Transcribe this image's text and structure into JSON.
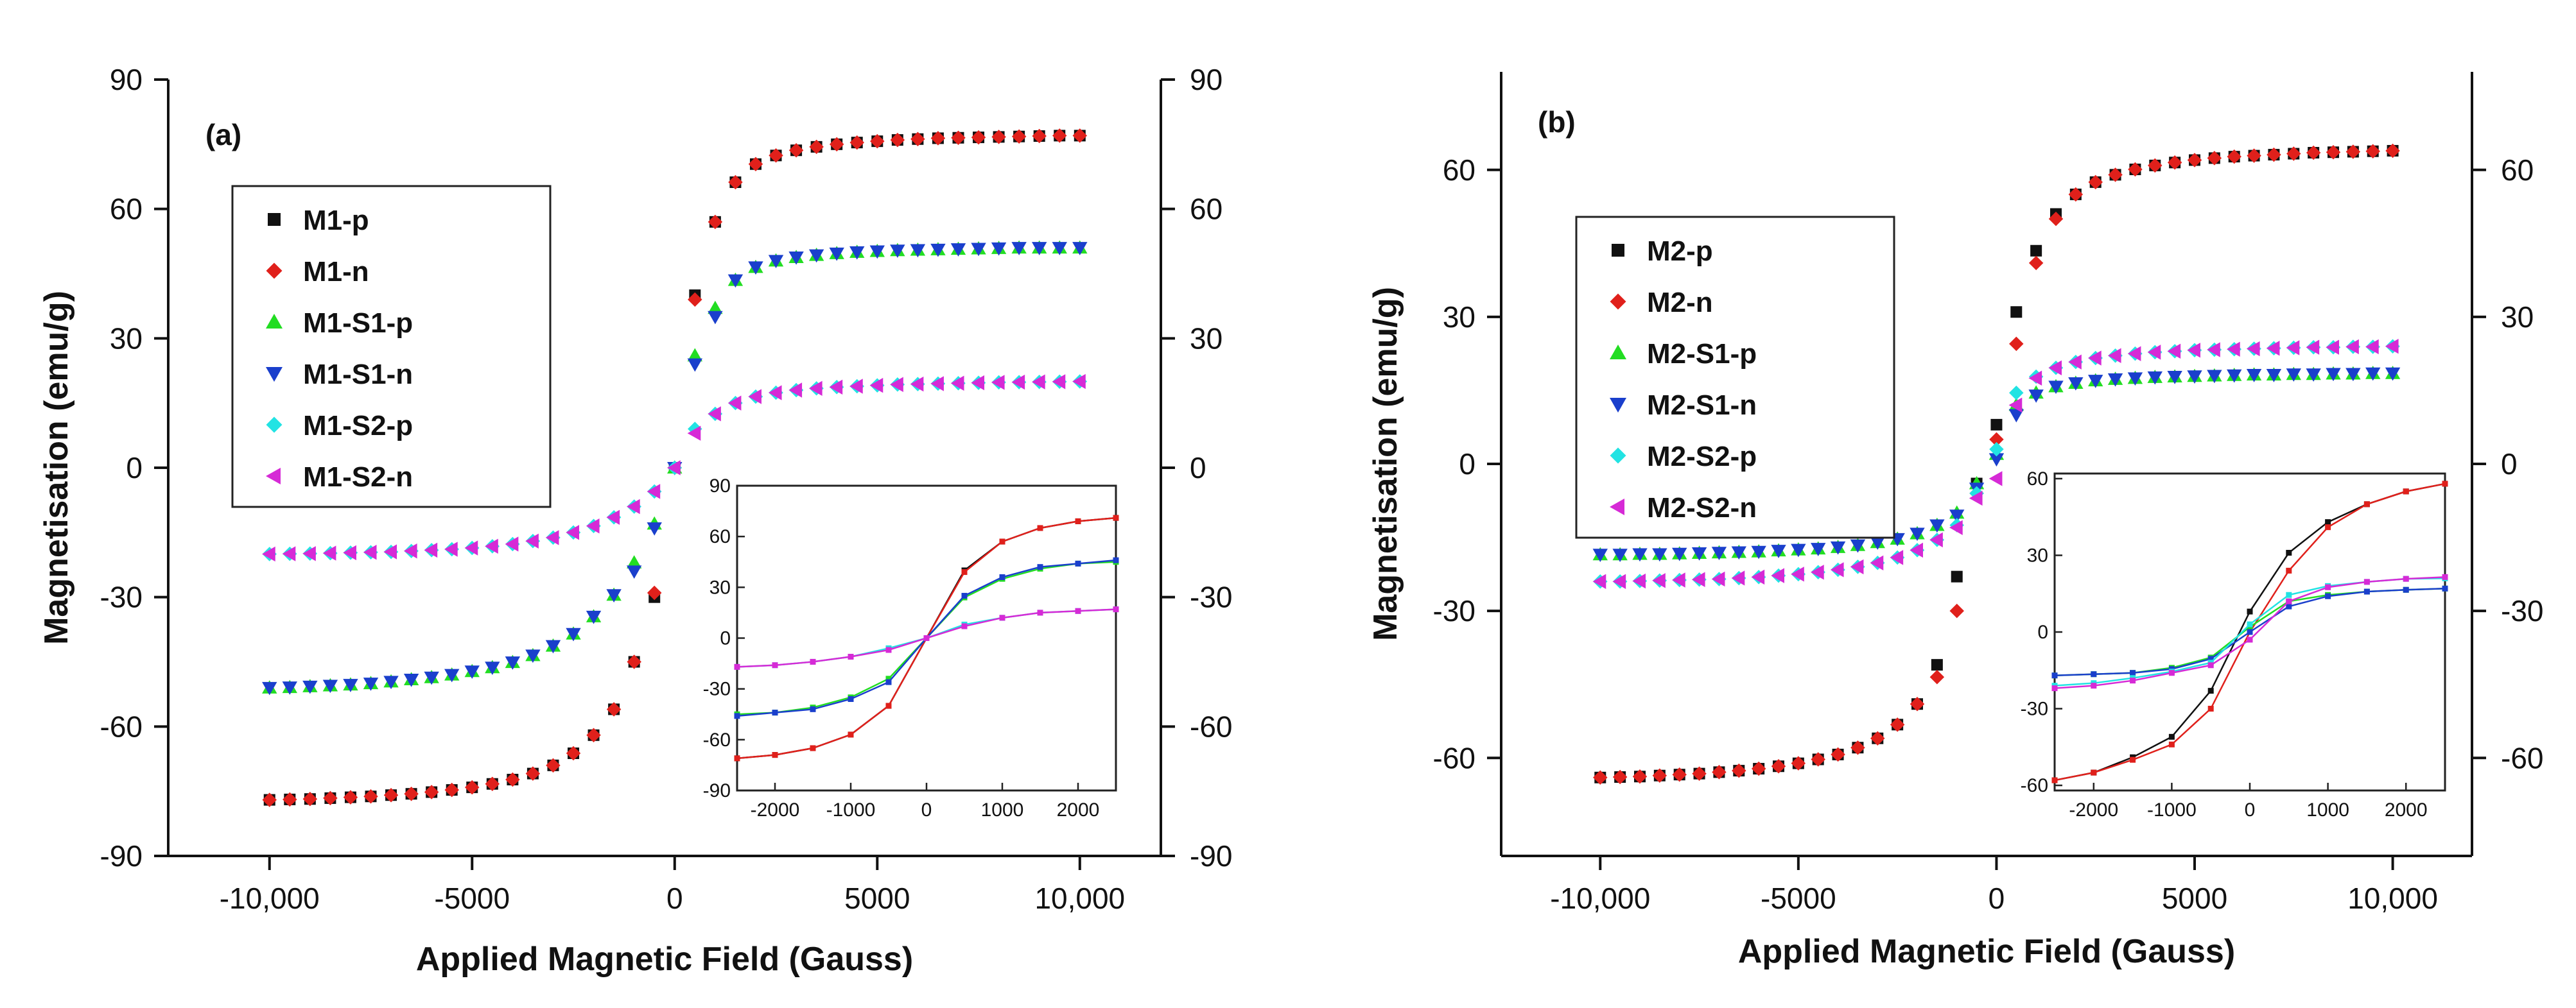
{
  "chart_data": [
    {
      "type": "scatter",
      "panel_label": "(a)",
      "xlabel": "Applied Magnetic Field (Gauss)",
      "ylabel": "Magnetisation (emu/g)",
      "xlim": [
        -12500,
        12000
      ],
      "ylim": [
        -90,
        90
      ],
      "xticks": [
        -10000,
        -5000,
        0,
        5000,
        10000
      ],
      "xtick_labels": [
        "-10,000",
        "-5000",
        "0",
        "5000",
        "10,000"
      ],
      "yticks": [
        -90,
        -60,
        -30,
        0,
        30,
        60,
        90
      ],
      "ytick_labels": [
        "-90",
        "-60",
        "-30",
        "0",
        "30",
        "60",
        "90"
      ],
      "right_ytick_labels": [
        "-90",
        "-60",
        "-30",
        "0",
        "30",
        "60",
        "90"
      ],
      "legend_position": "upper-left",
      "x": [
        -10000,
        -9500,
        -9000,
        -8500,
        -8000,
        -7500,
        -7000,
        -6500,
        -6000,
        -5500,
        -5000,
        -4500,
        -4000,
        -3500,
        -3000,
        -2500,
        -2000,
        -1500,
        -1000,
        -500,
        0,
        500,
        1000,
        1500,
        2000,
        2500,
        3000,
        3500,
        4000,
        4500,
        5000,
        5500,
        6000,
        6500,
        7000,
        7500,
        8000,
        8500,
        9000,
        9500,
        10000
      ],
      "series": [
        {
          "name": "M1-p",
          "color": "#111111",
          "marker": "square",
          "values": [
            -77,
            -76.9,
            -76.8,
            -76.6,
            -76.4,
            -76.2,
            -75.9,
            -75.6,
            -75.2,
            -74.7,
            -74.1,
            -73.3,
            -72.3,
            -70.9,
            -69,
            -66.2,
            -62,
            -56,
            -45,
            -30,
            0,
            40,
            57,
            66.2,
            70.4,
            72.4,
            73.6,
            74.4,
            75,
            75.4,
            75.7,
            76,
            76.2,
            76.4,
            76.5,
            76.6,
            76.7,
            76.8,
            76.9,
            77,
            77
          ]
        },
        {
          "name": "M1-n",
          "color": "#e0201b",
          "marker": "diamond",
          "values": [
            -77,
            -76.9,
            -76.8,
            -76.6,
            -76.4,
            -76.2,
            -75.9,
            -75.6,
            -75.2,
            -74.7,
            -74.1,
            -73.3,
            -72.3,
            -70.9,
            -69,
            -66.2,
            -62,
            -56,
            -45,
            -29,
            0,
            39,
            57,
            66.2,
            70.4,
            72.4,
            73.6,
            74.4,
            75,
            75.4,
            75.7,
            76,
            76.2,
            76.4,
            76.5,
            76.6,
            76.7,
            76.8,
            76.9,
            77,
            77
          ]
        },
        {
          "name": "M1-S1-p",
          "color": "#22dd22",
          "marker": "triangle-up",
          "values": [
            -51,
            -50.9,
            -50.7,
            -50.5,
            -50.3,
            -50,
            -49.6,
            -49.1,
            -48.6,
            -48,
            -47.2,
            -46.3,
            -45.1,
            -43.5,
            -41.3,
            -38.5,
            -34.5,
            -29.5,
            -22,
            -13,
            0,
            26,
            37,
            43.5,
            46.5,
            48,
            48.8,
            49.3,
            49.7,
            50,
            50.2,
            50.4,
            50.5,
            50.6,
            50.7,
            50.8,
            50.9,
            51,
            51,
            51,
            51
          ]
        },
        {
          "name": "M1-S1-n",
          "color": "#1a3fcc",
          "marker": "triangle-down",
          "values": [
            -51,
            -50.9,
            -50.7,
            -50.5,
            -50.3,
            -50,
            -49.6,
            -49.1,
            -48.6,
            -48,
            -47.2,
            -46.3,
            -45.1,
            -43.5,
            -41.3,
            -38.5,
            -34.5,
            -29.5,
            -24,
            -14,
            0,
            24,
            35,
            43.5,
            46.5,
            48,
            48.8,
            49.3,
            49.7,
            50,
            50.2,
            50.4,
            50.5,
            50.6,
            50.7,
            50.8,
            50.9,
            51,
            51,
            51,
            51
          ]
        },
        {
          "name": "M1-S2-p",
          "color": "#22e3e3",
          "marker": "diamond",
          "values": [
            -20,
            -19.95,
            -19.9,
            -19.8,
            -19.7,
            -19.6,
            -19.5,
            -19.3,
            -19.1,
            -18.9,
            -18.6,
            -18.2,
            -17.7,
            -17,
            -16.2,
            -15,
            -13.5,
            -11.5,
            -9,
            -5.5,
            0,
            9,
            12.5,
            15,
            16.5,
            17.4,
            18,
            18.4,
            18.7,
            18.9,
            19.1,
            19.3,
            19.4,
            19.5,
            19.6,
            19.7,
            19.8,
            19.85,
            19.9,
            19.95,
            20
          ]
        },
        {
          "name": "M1-S2-n",
          "color": "#d62ad6",
          "marker": "triangle-left",
          "values": [
            -20,
            -19.95,
            -19.9,
            -19.8,
            -19.7,
            -19.6,
            -19.5,
            -19.3,
            -19.1,
            -18.9,
            -18.6,
            -18.2,
            -17.7,
            -17,
            -16.2,
            -15,
            -13.5,
            -11.5,
            -9,
            -5.5,
            0,
            8,
            12.5,
            15,
            16.5,
            17.4,
            18,
            18.4,
            18.7,
            18.9,
            19.1,
            19.3,
            19.4,
            19.5,
            19.6,
            19.7,
            19.8,
            19.85,
            19.9,
            19.95,
            20
          ]
        }
      ],
      "inset": {
        "xlim": [
          -2500,
          2500
        ],
        "ylim": [
          -90,
          90
        ],
        "xticks": [
          -2000,
          -1000,
          0,
          1000,
          2000
        ],
        "xtick_labels": [
          "-2000",
          "-1000",
          "0",
          "1000",
          "2000"
        ],
        "yticks": [
          -90,
          -60,
          -30,
          0,
          30,
          60,
          90
        ],
        "ytick_labels": [
          "-90",
          "-60",
          "-30",
          "0",
          "30",
          "60",
          "90"
        ],
        "x": [
          -2500,
          -2000,
          -1500,
          -1000,
          -500,
          0,
          500,
          1000,
          1500,
          2000,
          2500
        ],
        "series": [
          {
            "name": "M1-p",
            "color": "#111111",
            "values": [
              -71,
              -69,
              -65,
              -57,
              -40,
              0,
              40,
              57,
              65,
              69,
              71
            ]
          },
          {
            "name": "M1-n",
            "color": "#e0201b",
            "values": [
              -71,
              -69,
              -65,
              -57,
              -40,
              0,
              39,
              57,
              65,
              69,
              71
            ]
          },
          {
            "name": "M1-S1-p",
            "color": "#22dd22",
            "values": [
              -45,
              -44,
              -41,
              -35,
              -24,
              0,
              24,
              35,
              41,
              44,
              45
            ]
          },
          {
            "name": "M1-S1-n",
            "color": "#1a3fcc",
            "values": [
              -46,
              -44,
              -42,
              -36,
              -26,
              0,
              25,
              36,
              42,
              44,
              46
            ]
          },
          {
            "name": "M1-S2-p",
            "color": "#22e3e3",
            "values": [
              -17,
              -16,
              -14,
              -11,
              -6,
              0,
              8,
              12,
              15,
              16,
              17
            ]
          },
          {
            "name": "M1-S2-n",
            "color": "#d62ad6",
            "values": [
              -17,
              -16,
              -14,
              -11,
              -7,
              0,
              7,
              12,
              15,
              16,
              17
            ]
          }
        ]
      }
    },
    {
      "type": "scatter",
      "panel_label": "(b)",
      "xlabel": "Applied Magnetic Field (Gauss)",
      "ylabel": "Magnetisation (emu/g)",
      "xlim": [
        -12500,
        12000
      ],
      "ylim": [
        -80,
        80
      ],
      "xticks": [
        -10000,
        -5000,
        0,
        5000,
        10000
      ],
      "xtick_labels": [
        "-10,000",
        "-5000",
        "0",
        "5000",
        "10,000"
      ],
      "yticks": [
        -60,
        -30,
        0,
        30,
        60
      ],
      "ytick_labels": [
        "-60",
        "-30",
        "0",
        "30",
        "60"
      ],
      "right_ytick_labels": [
        "-60",
        "-30",
        "0",
        "30",
        "60"
      ],
      "legend_position": "upper-left",
      "x": [
        -10000,
        -9500,
        -9000,
        -8500,
        -8000,
        -7500,
        -7000,
        -6500,
        -6000,
        -5500,
        -5000,
        -4500,
        -4000,
        -3500,
        -3000,
        -2500,
        -2000,
        -1500,
        -1000,
        -500,
        0,
        500,
        1000,
        1500,
        2000,
        2500,
        3000,
        3500,
        4000,
        4500,
        5000,
        5500,
        6000,
        6500,
        7000,
        7500,
        8000,
        8500,
        9000,
        9500,
        10000
      ],
      "series": [
        {
          "name": "M2-p",
          "color": "#111111",
          "marker": "square",
          "values": [
            -64,
            -63.9,
            -63.8,
            -63.6,
            -63.4,
            -63.2,
            -62.9,
            -62.6,
            -62.2,
            -61.7,
            -61.1,
            -60.3,
            -59.3,
            -57.9,
            -56,
            -53.2,
            -49,
            -41,
            -23,
            -4,
            8,
            31,
            43.5,
            51,
            55,
            57.5,
            59,
            60.1,
            60.9,
            61.5,
            62,
            62.4,
            62.7,
            62.9,
            63.1,
            63.3,
            63.5,
            63.6,
            63.7,
            63.8,
            63.9
          ]
        },
        {
          "name": "M2-n",
          "color": "#e0201b",
          "marker": "diamond",
          "values": [
            -64,
            -63.9,
            -63.8,
            -63.6,
            -63.4,
            -63.2,
            -62.9,
            -62.6,
            -62.2,
            -61.7,
            -61.1,
            -60.3,
            -59.3,
            -57.9,
            -56,
            -53.2,
            -49,
            -43.5,
            -30,
            -6,
            5,
            24.5,
            41,
            50,
            55,
            57.5,
            59,
            60.1,
            60.9,
            61.5,
            62,
            62.4,
            62.7,
            62.9,
            63.1,
            63.3,
            63.5,
            63.6,
            63.7,
            63.8,
            63.9
          ]
        },
        {
          "name": "M2-S1-p",
          "color": "#22dd22",
          "marker": "triangle-up",
          "values": [
            -18.5,
            -18.5,
            -18.4,
            -18.4,
            -18.3,
            -18.2,
            -18.1,
            -18,
            -17.9,
            -17.7,
            -17.5,
            -17.3,
            -17,
            -16.6,
            -16,
            -15.3,
            -14.2,
            -12.5,
            -10,
            -4,
            2,
            12,
            14.5,
            15.8,
            16.5,
            17,
            17.3,
            17.5,
            17.7,
            17.8,
            17.9,
            18,
            18.1,
            18.2,
            18.2,
            18.3,
            18.3,
            18.4,
            18.4,
            18.5,
            18.5
          ]
        },
        {
          "name": "M2-S1-n",
          "color": "#1a3fcc",
          "marker": "triangle-down",
          "values": [
            -18.5,
            -18.5,
            -18.4,
            -18.4,
            -18.3,
            -18.2,
            -18.1,
            -18,
            -17.9,
            -17.7,
            -17.5,
            -17.3,
            -17,
            -16.6,
            -16,
            -15.3,
            -14.2,
            -12.5,
            -10.5,
            -5,
            1,
            10,
            14,
            15.8,
            16.5,
            17,
            17.3,
            17.5,
            17.7,
            17.8,
            17.9,
            18,
            18.1,
            18.2,
            18.2,
            18.3,
            18.3,
            18.4,
            18.4,
            18.5,
            18.5
          ]
        },
        {
          "name": "M2-S2-p",
          "color": "#22e3e3",
          "marker": "diamond",
          "values": [
            -24,
            -24,
            -23.9,
            -23.8,
            -23.7,
            -23.6,
            -23.5,
            -23.3,
            -23.1,
            -22.8,
            -22.5,
            -22.1,
            -21.6,
            -21,
            -20.2,
            -19.1,
            -17.6,
            -15.5,
            -12.5,
            -6,
            3,
            14.5,
            17.8,
            19.6,
            20.8,
            21.6,
            22.1,
            22.5,
            22.8,
            23,
            23.2,
            23.3,
            23.4,
            23.5,
            23.6,
            23.7,
            23.8,
            23.8,
            23.9,
            23.9,
            24
          ]
        },
        {
          "name": "M2-S2-n",
          "color": "#d62ad6",
          "marker": "triangle-left",
          "values": [
            -24,
            -24,
            -23.9,
            -23.8,
            -23.7,
            -23.6,
            -23.5,
            -23.3,
            -23.1,
            -22.8,
            -22.5,
            -22.1,
            -21.6,
            -21,
            -20.2,
            -19.1,
            -17.6,
            -15.5,
            -13,
            -7,
            -3,
            12,
            17.5,
            19.6,
            20.8,
            21.6,
            22.1,
            22.5,
            22.8,
            23,
            23.2,
            23.3,
            23.4,
            23.5,
            23.6,
            23.7,
            23.8,
            23.8,
            23.9,
            23.9,
            24
          ]
        }
      ],
      "inset": {
        "xlim": [
          -2500,
          2500
        ],
        "ylim": [
          -62,
          62
        ],
        "xticks": [
          -2000,
          -1000,
          0,
          1000,
          2000
        ],
        "xtick_labels": [
          "-2000",
          "-1000",
          "0",
          "1000",
          "2000"
        ],
        "yticks": [
          -60,
          -30,
          0,
          30,
          60
        ],
        "ytick_labels": [
          "-60",
          "-30",
          "0",
          "30",
          "60"
        ],
        "x": [
          -2500,
          -2000,
          -1500,
          -1000,
          -500,
          0,
          500,
          1000,
          1500,
          2000,
          2500
        ],
        "series": [
          {
            "name": "M2-p",
            "color": "#111111",
            "values": [
              -58,
              -55,
              -49,
              -41,
              -23,
              8,
              31,
              43,
              50,
              55,
              58
            ]
          },
          {
            "name": "M2-n",
            "color": "#e0201b",
            "values": [
              -58,
              -55,
              -50,
              -44,
              -30,
              0,
              24,
              41,
              50,
              55,
              58
            ]
          },
          {
            "name": "M2-S1-p",
            "color": "#22dd22",
            "values": [
              -17,
              -16.5,
              -16,
              -14,
              -10,
              2,
              12,
              14.5,
              15.8,
              16.5,
              17
            ]
          },
          {
            "name": "M2-S1-n",
            "color": "#1a3fcc",
            "values": [
              -17,
              -16.5,
              -16,
              -14.5,
              -10.5,
              0,
              10,
              14,
              15.8,
              16.5,
              17
            ]
          },
          {
            "name": "M2-S2-p",
            "color": "#22e3e3",
            "values": [
              -21,
              -20,
              -18,
              -15.5,
              -12,
              3,
              14.5,
              18,
              19.6,
              20.8,
              21
            ]
          },
          {
            "name": "M2-S2-n",
            "color": "#d62ad6",
            "values": [
              -22,
              -21,
              -19,
              -16,
              -13,
              -3,
              12,
              17.5,
              19.6,
              20.8,
              21.5
            ]
          }
        ]
      }
    }
  ]
}
